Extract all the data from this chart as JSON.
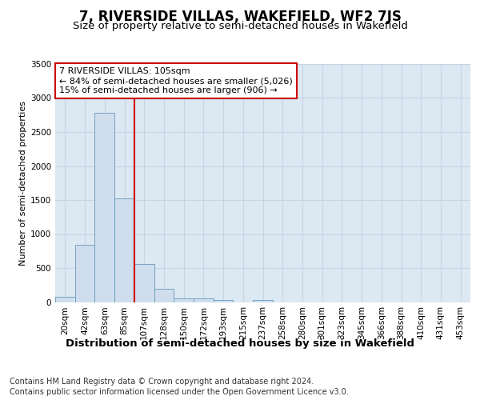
{
  "title": "7, RIVERSIDE VILLAS, WAKEFIELD, WF2 7JS",
  "subtitle": "Size of property relative to semi-detached houses in Wakefield",
  "xlabel": "Distribution of semi-detached houses by size in Wakefield",
  "ylabel": "Number of semi-detached properties",
  "footer1": "Contains HM Land Registry data © Crown copyright and database right 2024.",
  "footer2": "Contains public sector information licensed under the Open Government Licence v3.0.",
  "annotation_title": "7 RIVERSIDE VILLAS: 105sqm",
  "annotation_line1": "← 84% of semi-detached houses are smaller (5,026)",
  "annotation_line2": "15% of semi-detached houses are larger (906) →",
  "bar_labels": [
    "20sqm",
    "42sqm",
    "63sqm",
    "85sqm",
    "107sqm",
    "128sqm",
    "150sqm",
    "172sqm",
    "193sqm",
    "215sqm",
    "237sqm",
    "258sqm",
    "280sqm",
    "301sqm",
    "323sqm",
    "345sqm",
    "366sqm",
    "388sqm",
    "410sqm",
    "431sqm",
    "453sqm"
  ],
  "bar_values": [
    75,
    840,
    2780,
    1520,
    560,
    195,
    55,
    55,
    30,
    0,
    30,
    0,
    0,
    0,
    0,
    0,
    0,
    0,
    0,
    0,
    0
  ],
  "bar_color": "#cfdded",
  "bar_edge_color": "#6699bb",
  "vline_color": "#cc0000",
  "vline_bin_index": 4,
  "ylim": [
    0,
    3500
  ],
  "yticks": [
    0,
    500,
    1000,
    1500,
    2000,
    2500,
    3000,
    3500
  ],
  "grid_color": "#c5d5e5",
  "background_color": "#dce8f2",
  "title_fontsize": 12,
  "subtitle_fontsize": 9.5,
  "xlabel_fontsize": 9.5,
  "ylabel_fontsize": 8,
  "tick_fontsize": 7.5,
  "footer_fontsize": 7,
  "annotation_fontsize": 8
}
